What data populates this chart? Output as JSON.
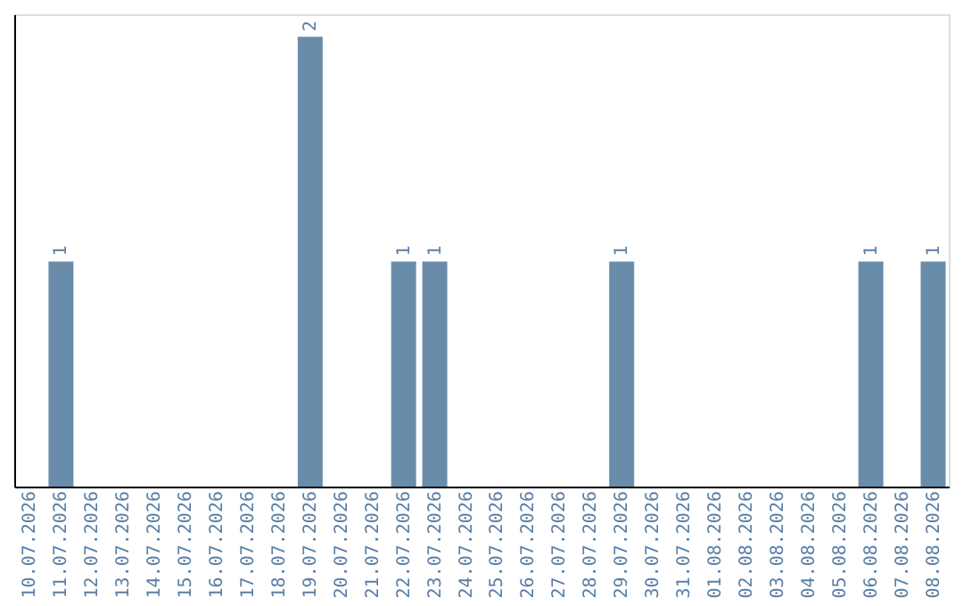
{
  "chart_data": {
    "type": "bar",
    "categories": [
      "10.07.2026",
      "11.07.2026",
      "12.07.2026",
      "13.07.2026",
      "14.07.2026",
      "15.07.2026",
      "16.07.2026",
      "17.07.2026",
      "18.07.2026",
      "19.07.2026",
      "20.07.2026",
      "21.07.2026",
      "22.07.2026",
      "23.07.2026",
      "24.07.2026",
      "25.07.2026",
      "26.07.2026",
      "27.07.2026",
      "28.07.2026",
      "29.07.2026",
      "30.07.2026",
      "31.07.2026",
      "01.08.2026",
      "02.08.2026",
      "03.08.2026",
      "04.08.2026",
      "05.08.2026",
      "06.08.2026",
      "07.08.2026",
      "08.08.2026"
    ],
    "values": [
      0,
      1,
      0,
      0,
      0,
      0,
      0,
      0,
      0,
      2,
      0,
      0,
      1,
      1,
      0,
      0,
      0,
      0,
      0,
      1,
      0,
      0,
      0,
      0,
      0,
      0,
      0,
      1,
      0,
      1
    ],
    "value_labels": [
      null,
      "1",
      null,
      null,
      null,
      null,
      null,
      null,
      null,
      "2",
      null,
      null,
      "1",
      "1",
      null,
      null,
      null,
      null,
      null,
      "1",
      null,
      null,
      null,
      null,
      null,
      null,
      null,
      "1",
      null,
      "1"
    ],
    "color": "#6a8cab",
    "ylim": [
      0,
      2.1
    ],
    "tick_labels": "x",
    "grid": false
  }
}
